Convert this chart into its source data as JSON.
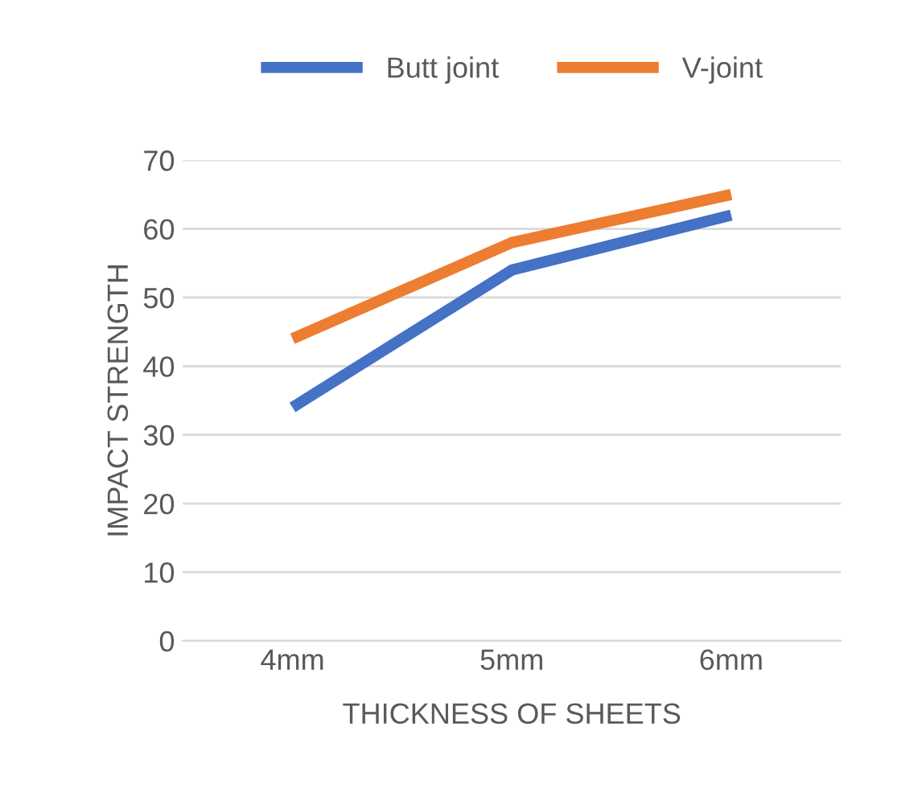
{
  "chart_data": {
    "type": "line",
    "xlabel": "THICKNESS OF SHEETS",
    "ylabel": "IMPACT STRENGTH",
    "categories": [
      "4mm",
      "5mm",
      "6mm"
    ],
    "series": [
      {
        "name": "Butt joint",
        "color": "#4472c4",
        "values": [
          34,
          54,
          62
        ]
      },
      {
        "name": "V-joint",
        "color": "#ed7d31",
        "values": [
          44,
          58,
          65
        ]
      }
    ],
    "ylim": [
      0,
      70
    ],
    "yticks": [
      0,
      10,
      20,
      30,
      40,
      50,
      60,
      70
    ],
    "grid": "y",
    "legend": "top",
    "marker": "none",
    "line_style": "solid"
  }
}
